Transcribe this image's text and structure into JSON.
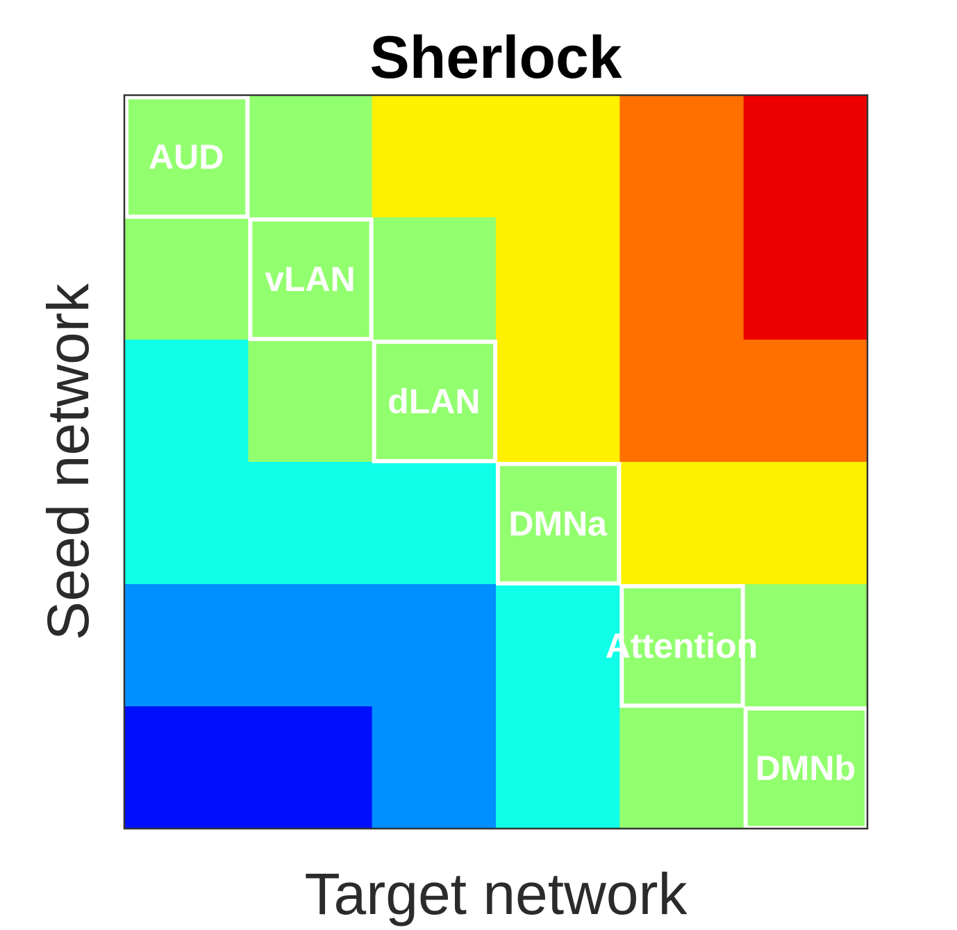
{
  "chart_data": {
    "type": "heatmap",
    "title": "Sherlock",
    "xlabel": "Target network",
    "ylabel": "Seed network",
    "networks": [
      "AUD",
      "vLAN",
      "dLAN",
      "DMNa",
      "Attention",
      "DMNb"
    ],
    "levels": [
      [
        3,
        3,
        4,
        4,
        5,
        6
      ],
      [
        3,
        3,
        3,
        4,
        5,
        6
      ],
      [
        2,
        3,
        3,
        4,
        5,
        5
      ],
      [
        2,
        2,
        2,
        3,
        4,
        4
      ],
      [
        1,
        1,
        1,
        2,
        3,
        3
      ],
      [
        0,
        0,
        1,
        2,
        3,
        3
      ]
    ],
    "colormap": [
      "#0010ff",
      "#0090ff",
      "#10ffe8",
      "#92ff6e",
      "#fff000",
      "#ff7000",
      "#ee0000"
    ],
    "grid": false,
    "legend": "none"
  }
}
